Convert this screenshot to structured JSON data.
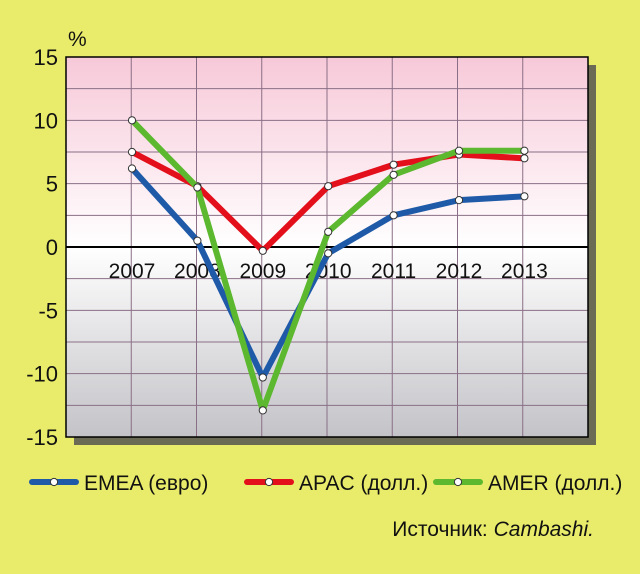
{
  "chart_data": {
    "type": "line",
    "ylabel": "%",
    "ylim": [
      -15,
      15
    ],
    "yticks": [
      15,
      10,
      5,
      0,
      -5,
      -10,
      -15
    ],
    "x": [
      "2007",
      "2008",
      "2009",
      "2010",
      "2011",
      "2012",
      "2013"
    ],
    "grid": true,
    "legend_position": "bottom",
    "series": [
      {
        "name": "EMEA (евро)",
        "color": "#1f5aa8",
        "values": [
          6.2,
          0.5,
          -10.3,
          -0.5,
          2.5,
          3.7,
          4.0
        ]
      },
      {
        "name": "APAC (долл.)",
        "color": "#e3101c",
        "values": [
          7.5,
          4.8,
          -0.3,
          4.8,
          6.5,
          7.3,
          7.0
        ]
      },
      {
        "name": "AMER (долл.)",
        "color": "#5cb82e",
        "values": [
          10.0,
          4.7,
          -12.9,
          1.2,
          5.7,
          7.6,
          7.6
        ]
      }
    ],
    "background": {
      "top": "#f7c9d8",
      "bottom": "#c3c3c8"
    }
  },
  "source": {
    "prefix": "Источник: ",
    "name": "Cambashi."
  }
}
